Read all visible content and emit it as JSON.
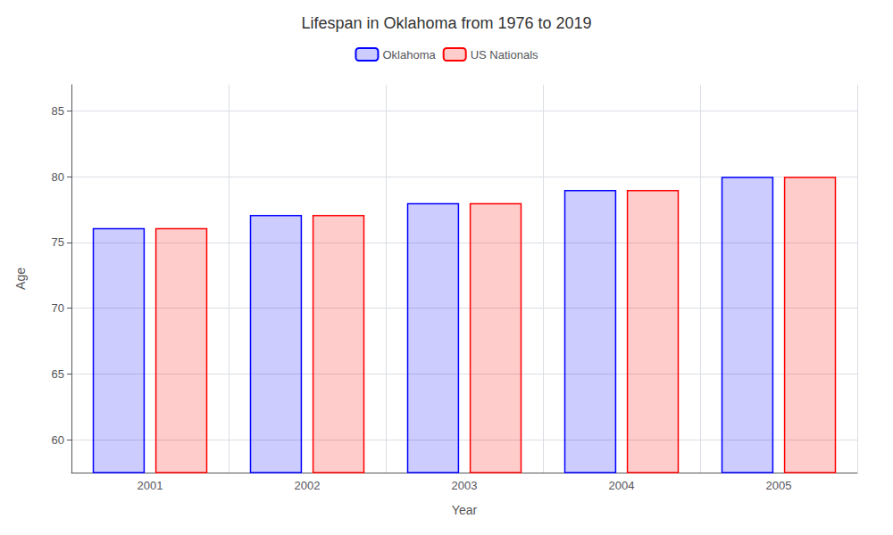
{
  "chart_data": {
    "type": "bar",
    "title": "Lifespan in Oklahoma from 1976 to 2019",
    "x_label": "Year",
    "y_label": "Age",
    "categories": [
      "2001",
      "2002",
      "2003",
      "2004",
      "2005"
    ],
    "series": [
      {
        "name": "Oklahoma",
        "color": "#0000ff",
        "values": [
          76.1,
          77.1,
          78.0,
          79.0,
          80.0
        ]
      },
      {
        "name": "US Nationals",
        "color": "#ff0000",
        "values": [
          76.1,
          77.1,
          78.0,
          79.0,
          80.0
        ]
      }
    ],
    "ylim": [
      57.5,
      87
    ],
    "yticks": [
      60,
      65,
      70,
      75,
      80,
      85
    ],
    "grid": true,
    "legend": "top"
  }
}
